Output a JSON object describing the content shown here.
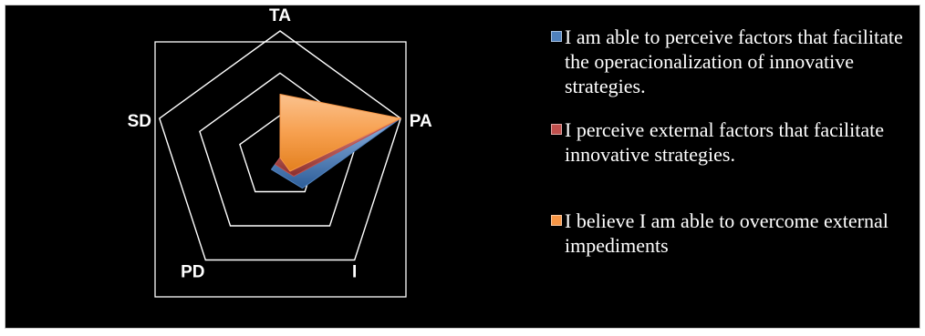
{
  "chart_data": {
    "type": "radar",
    "axes": [
      "TA",
      "PA",
      "I",
      "PD",
      "SD"
    ],
    "rlim": [
      0,
      3
    ],
    "rings": 3,
    "grid": true,
    "legend_position": "right",
    "series": [
      {
        "name": "I am able to perceive factors that facilitate the operacionalization of innovative strategies.",
        "color": "#4f81bd",
        "values": [
          0.85,
          3.0,
          0.9,
          0.35,
          0.0
        ]
      },
      {
        "name": "I perceive external factors that facilitate innovative strategies.",
        "color": "#c0504d",
        "values": [
          0.75,
          3.0,
          0.55,
          0.2,
          0.0
        ]
      },
      {
        "name": "I believe I am able to overcome external impediments",
        "color": "#f79646",
        "values": [
          1.5,
          3.0,
          0.4,
          0.0,
          0.0
        ]
      }
    ]
  }
}
